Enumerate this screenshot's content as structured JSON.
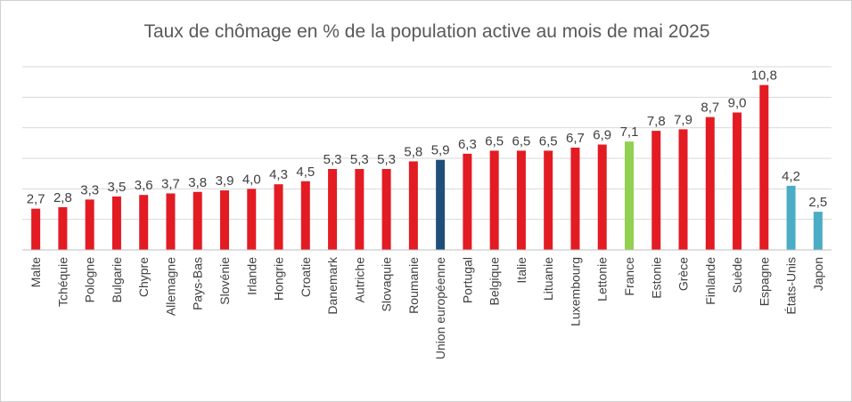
{
  "chart_data": {
    "type": "bar",
    "title": "Taux de chômage en % de la population active au mois de mai 2025",
    "categories": [
      "Malte",
      "Tchéquie",
      "Pologne",
      "Bulgarie",
      "Chypre",
      "Allemagne",
      "Pays-Bas",
      "Slovénie",
      "Irlande",
      "Hongrie",
      "Croatie",
      "Danemark",
      "Autriche",
      "Slovaquie",
      "Roumanie",
      "Union européenne",
      "Portugal",
      "Belgique",
      "Italie",
      "Lituanie",
      "Luxembourg",
      "Lettonie",
      "France",
      "Estonie",
      "Grèce",
      "Finlande",
      "Suède",
      "Espagne",
      "États-Unis",
      "Japon"
    ],
    "values": [
      2.7,
      2.8,
      3.3,
      3.5,
      3.6,
      3.7,
      3.8,
      3.9,
      4.0,
      4.3,
      4.5,
      5.3,
      5.3,
      5.3,
      5.8,
      5.9,
      6.3,
      6.5,
      6.5,
      6.5,
      6.7,
      6.9,
      7.1,
      7.8,
      7.9,
      8.7,
      9.0,
      10.8,
      4.2,
      2.5
    ],
    "data_labels": [
      "2,7",
      "2,8",
      "3,3",
      "3,5",
      "3,6",
      "3,7",
      "3,8",
      "3,9",
      "4,0",
      "4,3",
      "4,5",
      "5,3",
      "5,3",
      "5,3",
      "5,8",
      "5,9",
      "6,3",
      "6,5",
      "6,5",
      "6,5",
      "6,7",
      "6,9",
      "7,1",
      "7,8",
      "7,9",
      "8,7",
      "9,0",
      "10,8",
      "4,2",
      "2,5"
    ],
    "bar_colors": [
      "#e31b23",
      "#e31b23",
      "#e31b23",
      "#e31b23",
      "#e31b23",
      "#e31b23",
      "#e31b23",
      "#e31b23",
      "#e31b23",
      "#e31b23",
      "#e31b23",
      "#e31b23",
      "#e31b23",
      "#e31b23",
      "#e31b23",
      "#1f4e79",
      "#e31b23",
      "#e31b23",
      "#e31b23",
      "#e31b23",
      "#e31b23",
      "#e31b23",
      "#92d050",
      "#e31b23",
      "#e31b23",
      "#e31b23",
      "#e31b23",
      "#e31b23",
      "#4bacc6",
      "#4bacc6"
    ],
    "ylim": [
      0,
      12
    ],
    "gridlines": [
      2,
      4,
      6,
      8,
      10,
      12
    ],
    "grid": true,
    "legend": "none",
    "xlabel": "",
    "ylabel": ""
  }
}
